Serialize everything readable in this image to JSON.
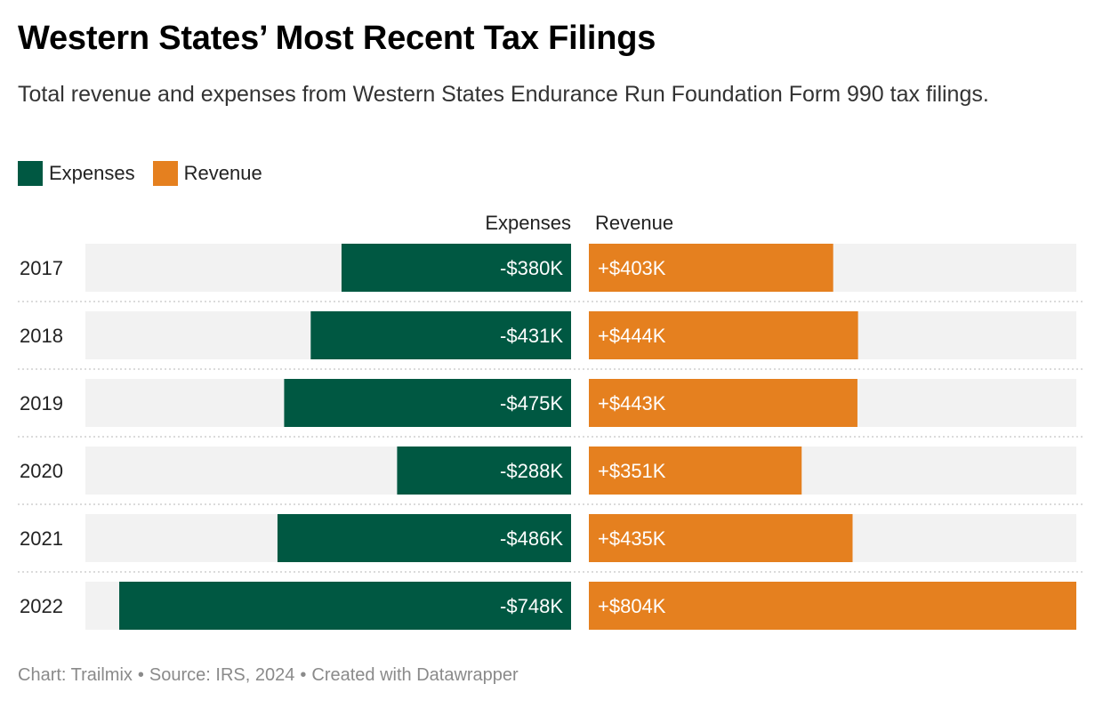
{
  "title": "Western States’ Most Recent Tax Filings",
  "subtitle": "Total revenue and expenses from Western States Endurance Run Foundation Form 990 tax filings.",
  "legend": [
    {
      "label": "Expenses",
      "color": "#005842"
    },
    {
      "label": "Revenue",
      "color": "#e5801f"
    }
  ],
  "columns": {
    "expenses": "Expenses",
    "revenue": "Revenue"
  },
  "source": {
    "chart": "Chart: Trailmix",
    "source": "Source: IRS, 2024",
    "created": "Created with Datawrapper",
    "separator": "•"
  },
  "colors": {
    "expenses": "#005842",
    "revenue": "#e5801f",
    "track": "#f2f2f2",
    "divider": "#cfcfcf"
  },
  "chart_data": {
    "type": "bar",
    "categories": [
      "2017",
      "2018",
      "2019",
      "2020",
      "2021",
      "2022"
    ],
    "series": [
      {
        "name": "Expenses",
        "values": [
          -380,
          -431,
          -475,
          -288,
          -486,
          -748
        ],
        "labels": [
          "-$380K",
          "-$431K",
          "-$475K",
          "-$288K",
          "-$486K",
          "-$748K"
        ]
      },
      {
        "name": "Revenue",
        "values": [
          403,
          444,
          443,
          351,
          435,
          804
        ],
        "labels": [
          "+$403K",
          "+$444K",
          "+$443K",
          "+$351K",
          "+$435K",
          "+$804K"
        ]
      }
    ],
    "units": "thousands of US dollars",
    "xlim": [
      0,
      804
    ]
  }
}
